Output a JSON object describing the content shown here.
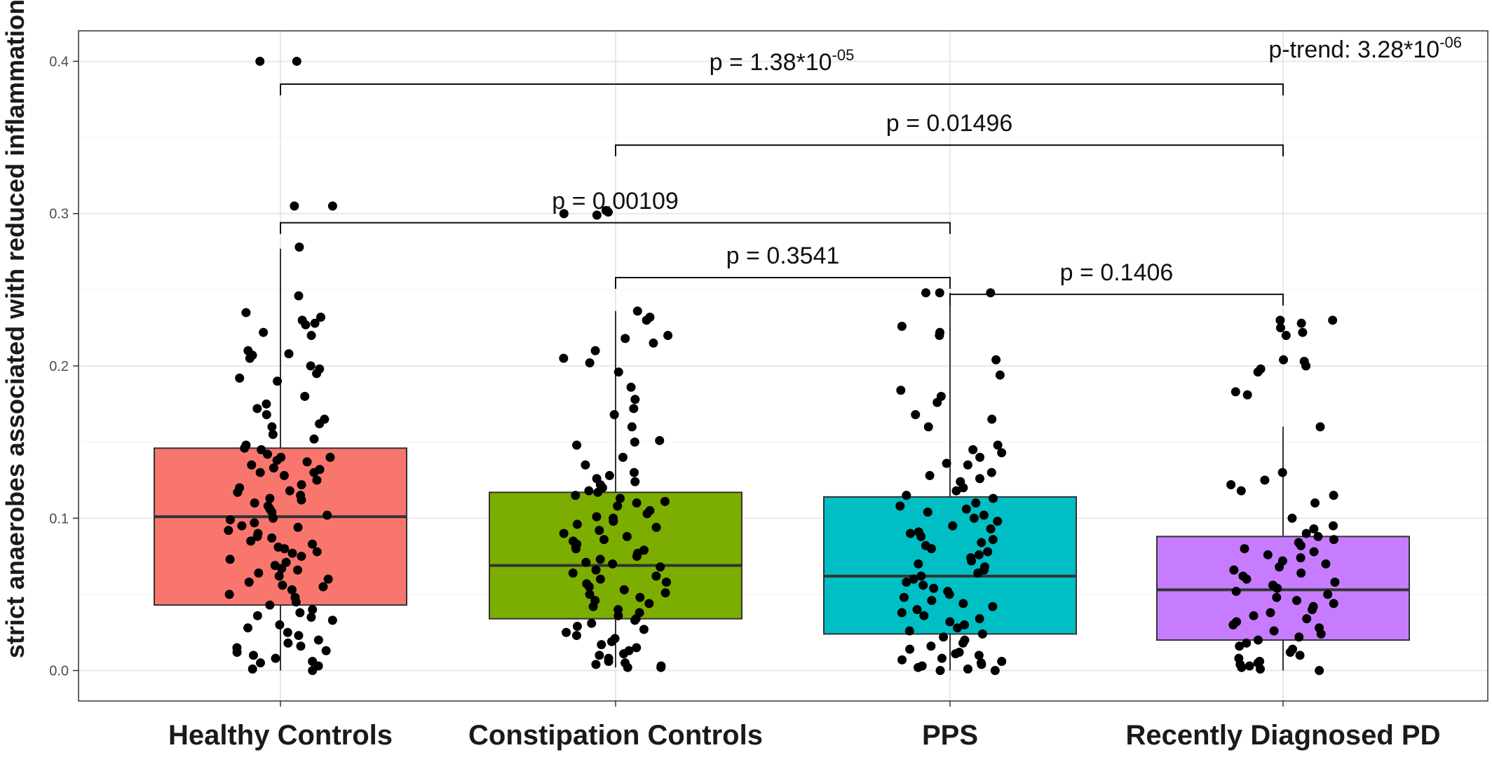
{
  "chart_data": {
    "type": "box",
    "ylabel": "strict anaerobes associated with reduced inflammation*",
    "ylim": [
      -0.02,
      0.42
    ],
    "yticks": [
      0.0,
      0.1,
      0.2,
      0.3,
      0.4
    ],
    "ytick_labels": [
      "0.0",
      "0.1",
      "0.2",
      "0.3",
      "0.4"
    ],
    "grid": true,
    "categories": [
      "Healthy Controls",
      "Constipation Controls",
      "PPS",
      "Recently Diagnosed PD"
    ],
    "colors": [
      "#F8766D",
      "#7CAE00",
      "#00BFC4",
      "#C77CFF"
    ],
    "boxes": [
      {
        "q1": 0.043,
        "median": 0.101,
        "q3": 0.146,
        "whisker_low": 0.0,
        "whisker_high": 0.277
      },
      {
        "q1": 0.034,
        "median": 0.069,
        "q3": 0.117,
        "whisker_low": 0.002,
        "whisker_high": 0.236
      },
      {
        "q1": 0.024,
        "median": 0.062,
        "q3": 0.114,
        "whisker_low": 0.0,
        "whisker_high": 0.248
      },
      {
        "q1": 0.02,
        "median": 0.053,
        "q3": 0.088,
        "whisker_low": 0.0,
        "whisker_high": 0.16
      }
    ],
    "points": [
      [
        0.4,
        0.4,
        0.305,
        0.305,
        0.278,
        0.246,
        0.235,
        0.232,
        0.23,
        0.228,
        0.227,
        0.222,
        0.22,
        0.21,
        0.208,
        0.207,
        0.205,
        0.2,
        0.198,
        0.195,
        0.192,
        0.19,
        0.18,
        0.175,
        0.172,
        0.168,
        0.165,
        0.162,
        0.16,
        0.155,
        0.152,
        0.148,
        0.146,
        0.145,
        0.142,
        0.14,
        0.14,
        0.138,
        0.137,
        0.135,
        0.133,
        0.132,
        0.13,
        0.13,
        0.128,
        0.125,
        0.122,
        0.12,
        0.118,
        0.117,
        0.115,
        0.113,
        0.112,
        0.11,
        0.108,
        0.106,
        0.104,
        0.102,
        0.1,
        0.099,
        0.097,
        0.095,
        0.094,
        0.092,
        0.09,
        0.088,
        0.087,
        0.085,
        0.083,
        0.081,
        0.08,
        0.078,
        0.077,
        0.075,
        0.073,
        0.071,
        0.069,
        0.067,
        0.066,
        0.064,
        0.062,
        0.06,
        0.058,
        0.056,
        0.055,
        0.053,
        0.05,
        0.048,
        0.045,
        0.043,
        0.04,
        0.038,
        0.036,
        0.035,
        0.033,
        0.03,
        0.028,
        0.025,
        0.023,
        0.02,
        0.018,
        0.016,
        0.015,
        0.013,
        0.012,
        0.01,
        0.008,
        0.006,
        0.005,
        0.003,
        0.001,
        0.0
      ],
      [
        0.302,
        0.301,
        0.3,
        0.299,
        0.236,
        0.232,
        0.23,
        0.22,
        0.218,
        0.215,
        0.21,
        0.205,
        0.202,
        0.196,
        0.186,
        0.178,
        0.172,
        0.168,
        0.16,
        0.151,
        0.15,
        0.148,
        0.14,
        0.135,
        0.13,
        0.128,
        0.126,
        0.124,
        0.122,
        0.12,
        0.118,
        0.117,
        0.115,
        0.113,
        0.111,
        0.11,
        0.108,
        0.105,
        0.103,
        0.101,
        0.1,
        0.098,
        0.096,
        0.094,
        0.092,
        0.09,
        0.088,
        0.086,
        0.085,
        0.083,
        0.081,
        0.08,
        0.079,
        0.077,
        0.075,
        0.073,
        0.071,
        0.07,
        0.068,
        0.066,
        0.064,
        0.062,
        0.06,
        0.058,
        0.057,
        0.055,
        0.053,
        0.051,
        0.05,
        0.048,
        0.046,
        0.044,
        0.042,
        0.04,
        0.038,
        0.036,
        0.034,
        0.033,
        0.031,
        0.029,
        0.027,
        0.025,
        0.023,
        0.021,
        0.019,
        0.017,
        0.015,
        0.013,
        0.011,
        0.01,
        0.008,
        0.006,
        0.005,
        0.004,
        0.003,
        0.002,
        0.002
      ],
      [
        0.248,
        0.248,
        0.248,
        0.226,
        0.222,
        0.22,
        0.204,
        0.194,
        0.184,
        0.18,
        0.176,
        0.168,
        0.165,
        0.16,
        0.148,
        0.145,
        0.143,
        0.14,
        0.136,
        0.135,
        0.13,
        0.128,
        0.126,
        0.124,
        0.12,
        0.118,
        0.115,
        0.113,
        0.11,
        0.108,
        0.106,
        0.104,
        0.102,
        0.1,
        0.098,
        0.095,
        0.093,
        0.091,
        0.09,
        0.088,
        0.086,
        0.084,
        0.082,
        0.08,
        0.078,
        0.076,
        0.074,
        0.072,
        0.07,
        0.068,
        0.066,
        0.064,
        0.062,
        0.06,
        0.058,
        0.056,
        0.054,
        0.052,
        0.05,
        0.048,
        0.046,
        0.044,
        0.042,
        0.04,
        0.038,
        0.036,
        0.034,
        0.032,
        0.03,
        0.028,
        0.026,
        0.024,
        0.022,
        0.02,
        0.018,
        0.016,
        0.014,
        0.012,
        0.011,
        0.01,
        0.008,
        0.007,
        0.006,
        0.005,
        0.004,
        0.003,
        0.002,
        0.001,
        0.0,
        0.0
      ],
      [
        0.23,
        0.23,
        0.228,
        0.225,
        0.222,
        0.22,
        0.204,
        0.203,
        0.2,
        0.198,
        0.196,
        0.183,
        0.181,
        0.16,
        0.13,
        0.125,
        0.122,
        0.118,
        0.115,
        0.11,
        0.1,
        0.095,
        0.093,
        0.09,
        0.088,
        0.086,
        0.084,
        0.082,
        0.08,
        0.078,
        0.076,
        0.074,
        0.072,
        0.07,
        0.068,
        0.066,
        0.064,
        0.062,
        0.06,
        0.058,
        0.056,
        0.054,
        0.052,
        0.05,
        0.048,
        0.046,
        0.044,
        0.042,
        0.04,
        0.038,
        0.036,
        0.034,
        0.032,
        0.03,
        0.028,
        0.026,
        0.024,
        0.022,
        0.02,
        0.018,
        0.016,
        0.014,
        0.012,
        0.01,
        0.008,
        0.006,
        0.005,
        0.004,
        0.003,
        0.002,
        0.001,
        0.0
      ]
    ],
    "comparisons": [
      {
        "from": 0,
        "to": 3,
        "y": 0.385,
        "label": "p = 1.38*10",
        "exp": "-05"
      },
      {
        "from": 1,
        "to": 3,
        "y": 0.345,
        "label": "p = 0.01496",
        "exp": ""
      },
      {
        "from": 0,
        "to": 2,
        "y": 0.294,
        "label": "p = 0.00109",
        "exp": ""
      },
      {
        "from": 1,
        "to": 2,
        "y": 0.258,
        "label": "p = 0.3541",
        "exp": ""
      },
      {
        "from": 2,
        "to": 3,
        "y": 0.247,
        "label": "p = 0.1406",
        "exp": ""
      }
    ],
    "trend": {
      "label": "p-trend: 3.28*10",
      "exp": "-06"
    }
  }
}
